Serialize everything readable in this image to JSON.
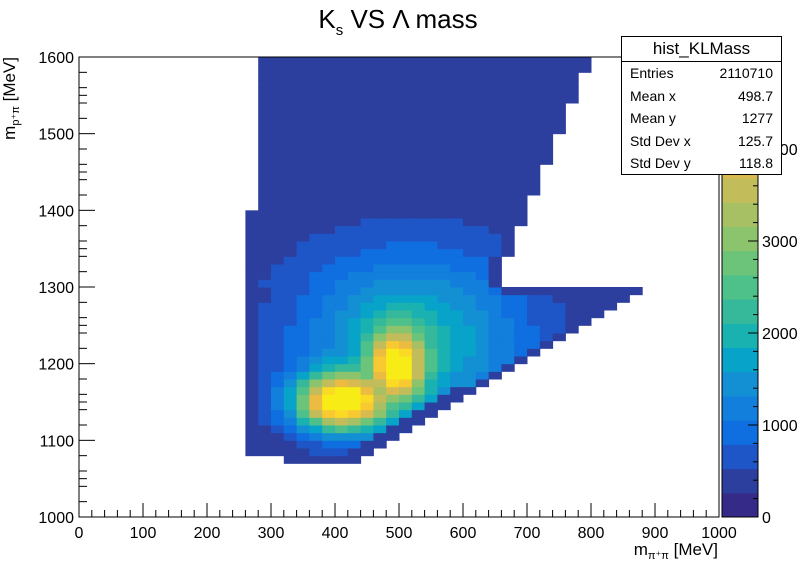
{
  "chart_data": {
    "type": "heatmap",
    "title_parts": {
      "k": "K",
      "s": "s",
      "rest": " VS Λ mass"
    },
    "xlabel_parts": {
      "m": "m",
      "sub": "π⁺π",
      "unit": " [MeV]"
    },
    "ylabel_parts": {
      "m": "m",
      "sub": "p⁺π",
      "unit": " [MeV]"
    },
    "xlim": [
      0,
      1000
    ],
    "ylim": [
      1000,
      1600
    ],
    "x_ticks": [
      "0",
      "100",
      "200",
      "300",
      "400",
      "500",
      "600",
      "700",
      "800",
      "900",
      "1000"
    ],
    "y_ticks": [
      "1000",
      "1100",
      "1200",
      "1300",
      "1400",
      "1500",
      "1600"
    ],
    "z_ticks": [
      "0",
      "1000",
      "2000",
      "3000",
      "4000"
    ],
    "zlim": [
      0,
      5000
    ],
    "bin_width_x": 20,
    "bin_width_y": 10,
    "palette": [
      "#352a87",
      "#2d3f9e",
      "#1e56c8",
      "#0f6ee0",
      "#127fdc",
      "#1290d3",
      "#07a3c9",
      "#1ab2b0",
      "#35b99a",
      "#4ec089",
      "#6cc37a",
      "#8cc36d",
      "#a8c064",
      "#c2bd5a",
      "#d8ba50",
      "#ebbb42",
      "#f8c931",
      "#fada25",
      "#f8ec17"
    ],
    "footprint": {
      "upper_region": {
        "x_min": 280,
        "x_max_at_1300": 650,
        "y_top": 1600,
        "note": "diagonal upper-right edge"
      },
      "lower_region": {
        "x_min": 270,
        "x_max_at_1300": 890,
        "y_bottom": 1070
      }
    },
    "peak": {
      "x": 410,
      "y": 1150,
      "z": 5000
    },
    "secondary_ridge": {
      "x": 490,
      "y": 1200
    }
  },
  "stats_box": {
    "name": "hist_KLMass",
    "rows": [
      {
        "key": "Entries",
        "value": "2110710"
      },
      {
        "key": "Mean x",
        "value": "498.7"
      },
      {
        "key": "Mean y",
        "value": "1277"
      },
      {
        "key": "Std Dev x",
        "value": "125.7"
      },
      {
        "key": "Std Dev y",
        "value": "118.8"
      }
    ]
  }
}
